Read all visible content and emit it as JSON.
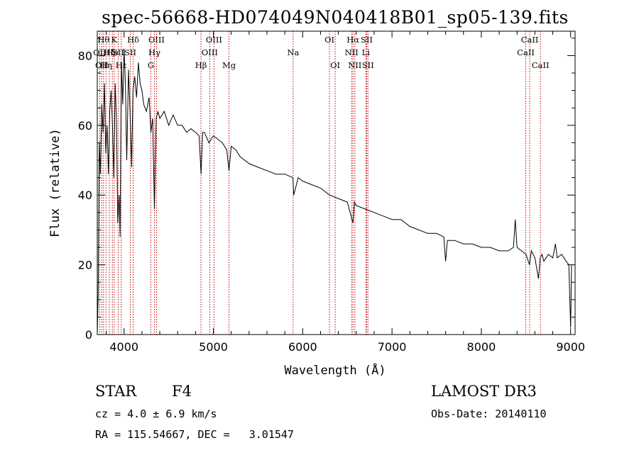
{
  "chart_data": {
    "type": "line",
    "title": "spec-56668-HD074049N040418B01_sp05-139.fits",
    "xlabel": "Wavelength (Å)",
    "ylabel": "Flux (relative)",
    "xlim": [
      3700,
      9050
    ],
    "ylim": [
      0,
      87
    ],
    "xticks": [
      4000,
      5000,
      6000,
      7000,
      8000,
      9000
    ],
    "xtick_labels": [
      "4000",
      "5000",
      "6000",
      "7000",
      "8000",
      "9000"
    ],
    "yticks": [
      0,
      20,
      40,
      60,
      80
    ],
    "ytick_labels": [
      "0",
      "20",
      "40",
      "60",
      "80"
    ],
    "grid": false,
    "series": [
      {
        "name": "flux",
        "color": "#000000",
        "x": [
          3700,
          3710,
          3722,
          3735,
          3750,
          3765,
          3780,
          3795,
          3810,
          3825,
          3840,
          3855,
          3870,
          3885,
          3900,
          3915,
          3930,
          3945,
          3955,
          3970,
          3985,
          4000,
          4015,
          4030,
          4050,
          4070,
          4085,
          4100,
          4120,
          4140,
          4160,
          4180,
          4200,
          4220,
          4250,
          4280,
          4300,
          4320,
          4340,
          4360,
          4380,
          4400,
          4450,
          4500,
          4550,
          4600,
          4650,
          4700,
          4750,
          4800,
          4840,
          4862,
          4880,
          4900,
          4950,
          5000,
          5050,
          5100,
          5150,
          5175,
          5200,
          5250,
          5300,
          5400,
          5500,
          5600,
          5700,
          5800,
          5890,
          5900,
          5950,
          6000,
          6100,
          6200,
          6300,
          6400,
          6500,
          6563,
          6580,
          6600,
          6700,
          6800,
          6900,
          7000,
          7100,
          7200,
          7300,
          7400,
          7500,
          7580,
          7600,
          7620,
          7700,
          7800,
          7900,
          8000,
          8100,
          8200,
          8300,
          8360,
          8380,
          8400,
          8450,
          8500,
          8540,
          8560,
          8600,
          8640,
          8660,
          8680,
          8700,
          8750,
          8800,
          8830,
          8850,
          8900,
          8950,
          8980,
          9000,
          9010
        ],
        "y": [
          0,
          12,
          55,
          46,
          66,
          58,
          72,
          52,
          60,
          46,
          64,
          70,
          60,
          45,
          72,
          62,
          32,
          40,
          28,
          78,
          66,
          82,
          72,
          50,
          76,
          62,
          48,
          70,
          74,
          68,
          78,
          72,
          70,
          66,
          64,
          68,
          58,
          62,
          36,
          62,
          64,
          62,
          64,
          60,
          63,
          60,
          60,
          58,
          59,
          58,
          57,
          46,
          58,
          58,
          55,
          57,
          56,
          55,
          53,
          47,
          54,
          53,
          51,
          49,
          48,
          47,
          46,
          46,
          45,
          40,
          45,
          44,
          43,
          42,
          40,
          39,
          38,
          32,
          38,
          37,
          36,
          35,
          34,
          33,
          33,
          31,
          30,
          29,
          29,
          28,
          21,
          27,
          27,
          26,
          26,
          25,
          25,
          24,
          24,
          25,
          33,
          25,
          24,
          23,
          20,
          24,
          22,
          16,
          22,
          23,
          21,
          23,
          22,
          26,
          22,
          23,
          21,
          20,
          2,
          20
        ]
      }
    ],
    "lines": [
      {
        "w": 3727,
        "label": "OII",
        "row": 1
      },
      {
        "w": 3750,
        "label": "OII",
        "row": 2
      },
      {
        "w": 3770,
        "label": "Hθ",
        "row": 0
      },
      {
        "w": 3798,
        "label": "Hη",
        "row": 2
      },
      {
        "w": 3835,
        "label": "Hζ",
        "row": 1
      },
      {
        "w": 3869,
        "label": "He",
        "row": 1
      },
      {
        "w": 3889,
        "label": "K",
        "row": 0
      },
      {
        "w": 3934,
        "label": "SII",
        "row": 1
      },
      {
        "w": 3968,
        "label": "Hε",
        "row": 2
      },
      {
        "w": 4070,
        "label": "SII",
        "row": 1
      },
      {
        "w": 4102,
        "label": "Hδ",
        "row": 0
      },
      {
        "w": 4300,
        "label": "G",
        "row": 2
      },
      {
        "w": 4340,
        "label": "Hγ",
        "row": 1
      },
      {
        "w": 4363,
        "label": "OIII",
        "row": 0
      },
      {
        "w": 4861,
        "label": "Hβ",
        "row": 2
      },
      {
        "w": 4959,
        "label": "OIII",
        "row": 1
      },
      {
        "w": 5007,
        "label": "OIII",
        "row": 0
      },
      {
        "w": 5175,
        "label": "Mg",
        "row": 2
      },
      {
        "w": 5893,
        "label": "Na",
        "row": 1
      },
      {
        "w": 6300,
        "label": "OI",
        "row": 0
      },
      {
        "w": 6364,
        "label": "OI",
        "row": 2
      },
      {
        "w": 6548,
        "label": "NII",
        "row": 1
      },
      {
        "w": 6563,
        "label": "Hα",
        "row": 0
      },
      {
        "w": 6584,
        "label": "NII",
        "row": 2
      },
      {
        "w": 6707,
        "label": "Li",
        "row": 1
      },
      {
        "w": 6717,
        "label": "SII",
        "row": 0
      },
      {
        "w": 6731,
        "label": "SII",
        "row": 2
      },
      {
        "w": 8498,
        "label": "CaII",
        "row": 1
      },
      {
        "w": 8542,
        "label": "CaII",
        "row": 0
      },
      {
        "w": 8662,
        "label": "CaII",
        "row": 2
      }
    ]
  },
  "info": {
    "class": "STAR",
    "subclass": "F4",
    "survey": "LAMOST DR3",
    "cz": "cz = 4.0 ± 6.9 km/s",
    "obs_date": "Obs-Date: 20140110",
    "radec": "RA = 115.54667, DEC =   3.01547"
  }
}
